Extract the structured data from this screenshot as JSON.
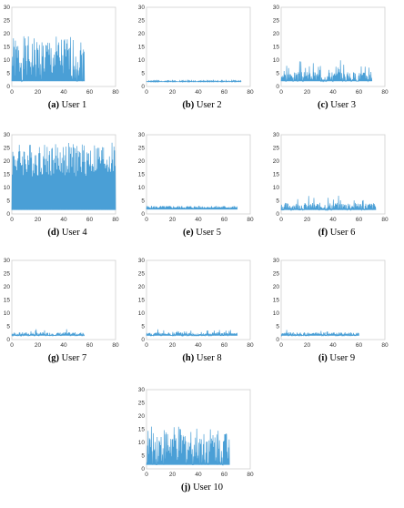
{
  "chart_data": [
    {
      "type": "line",
      "caption_letter": "(a)",
      "caption_text": "User 1",
      "xlim": [
        0,
        80
      ],
      "ylim": [
        0,
        30
      ],
      "xticks": [
        0,
        20,
        40,
        60,
        80
      ],
      "yticks": [
        0,
        5,
        10,
        15,
        20,
        25,
        30
      ],
      "xmax_data": 56,
      "base": 2,
      "peak": 19,
      "activity": "high",
      "seed": 1
    },
    {
      "type": "line",
      "caption_letter": "(b)",
      "caption_text": "User 2",
      "xlim": [
        0,
        80
      ],
      "ylim": [
        0,
        30
      ],
      "xticks": [
        0,
        20,
        40,
        60,
        80
      ],
      "yticks": [
        0,
        5,
        10,
        15,
        20,
        25,
        30
      ],
      "xmax_data": 73,
      "base": 1.8,
      "peak": 2.3,
      "activity": "flat",
      "seed": 2
    },
    {
      "type": "line",
      "caption_letter": "(c)",
      "caption_text": "User 3",
      "xlim": [
        0,
        80
      ],
      "ylim": [
        0,
        30
      ],
      "xticks": [
        0,
        20,
        40,
        60,
        80
      ],
      "yticks": [
        0,
        5,
        10,
        15,
        20,
        25,
        30
      ],
      "xmax_data": 70,
      "base": 2,
      "peak": 10,
      "activity": "medium",
      "seed": 3
    },
    {
      "type": "line",
      "caption_letter": "(d)",
      "caption_text": "User 4",
      "xlim": [
        0,
        80
      ],
      "ylim": [
        0,
        30
      ],
      "xticks": [
        0,
        20,
        40,
        60,
        80
      ],
      "yticks": [
        0,
        5,
        10,
        15,
        20,
        25,
        30
      ],
      "xmax_data": 80,
      "base": 1.5,
      "peak": 27,
      "activity": "very_high",
      "seed": 4
    },
    {
      "type": "line",
      "caption_letter": "(e)",
      "caption_text": "User 5",
      "xlim": [
        0,
        80
      ],
      "ylim": [
        0,
        30
      ],
      "xticks": [
        0,
        20,
        40,
        60,
        80
      ],
      "yticks": [
        0,
        5,
        10,
        15,
        20,
        25,
        30
      ],
      "xmax_data": 70,
      "base": 1.5,
      "peak": 3,
      "activity": "wave",
      "seed": 5
    },
    {
      "type": "line",
      "caption_letter": "(f)",
      "caption_text": "User 6",
      "xlim": [
        0,
        80
      ],
      "ylim": [
        0,
        30
      ],
      "xticks": [
        0,
        20,
        40,
        60,
        80
      ],
      "yticks": [
        0,
        5,
        10,
        15,
        20,
        25,
        30
      ],
      "xmax_data": 73,
      "base": 1.5,
      "peak": 7,
      "activity": "low",
      "seed": 6
    },
    {
      "type": "line",
      "caption_letter": "(g)",
      "caption_text": "User 7",
      "xlim": [
        0,
        80
      ],
      "ylim": [
        0,
        30
      ],
      "xticks": [
        0,
        20,
        40,
        60,
        80
      ],
      "yticks": [
        0,
        5,
        10,
        15,
        20,
        25,
        30
      ],
      "xmax_data": 56,
      "base": 1.5,
      "peak": 4,
      "activity": "low_dense",
      "seed": 7
    },
    {
      "type": "line",
      "caption_letter": "(h)",
      "caption_text": "User 8",
      "xlim": [
        0,
        80
      ],
      "ylim": [
        0,
        30
      ],
      "xticks": [
        0,
        20,
        40,
        60,
        80
      ],
      "yticks": [
        0,
        5,
        10,
        15,
        20,
        25,
        30
      ],
      "xmax_data": 70,
      "base": 1.5,
      "peak": 4,
      "activity": "low",
      "seed": 8
    },
    {
      "type": "line",
      "caption_letter": "(i)",
      "caption_text": "User 9",
      "xlim": [
        0,
        80
      ],
      "ylim": [
        0,
        30
      ],
      "xticks": [
        0,
        20,
        40,
        60,
        80
      ],
      "yticks": [
        0,
        5,
        10,
        15,
        20,
        25,
        30
      ],
      "xmax_data": 60,
      "base": 1.5,
      "peak": 4,
      "activity": "low",
      "seed": 9
    },
    {
      "type": "line",
      "caption_letter": "(j)",
      "caption_text": "User 10",
      "xlim": [
        0,
        80
      ],
      "ylim": [
        0,
        30
      ],
      "xticks": [
        0,
        20,
        40,
        60,
        80
      ],
      "yticks": [
        0,
        5,
        10,
        15,
        20,
        25,
        30
      ],
      "xmax_data": 64,
      "base": 1.5,
      "peak": 16,
      "activity": "high",
      "seed": 10
    }
  ],
  "line_color": "#4a9fd6"
}
